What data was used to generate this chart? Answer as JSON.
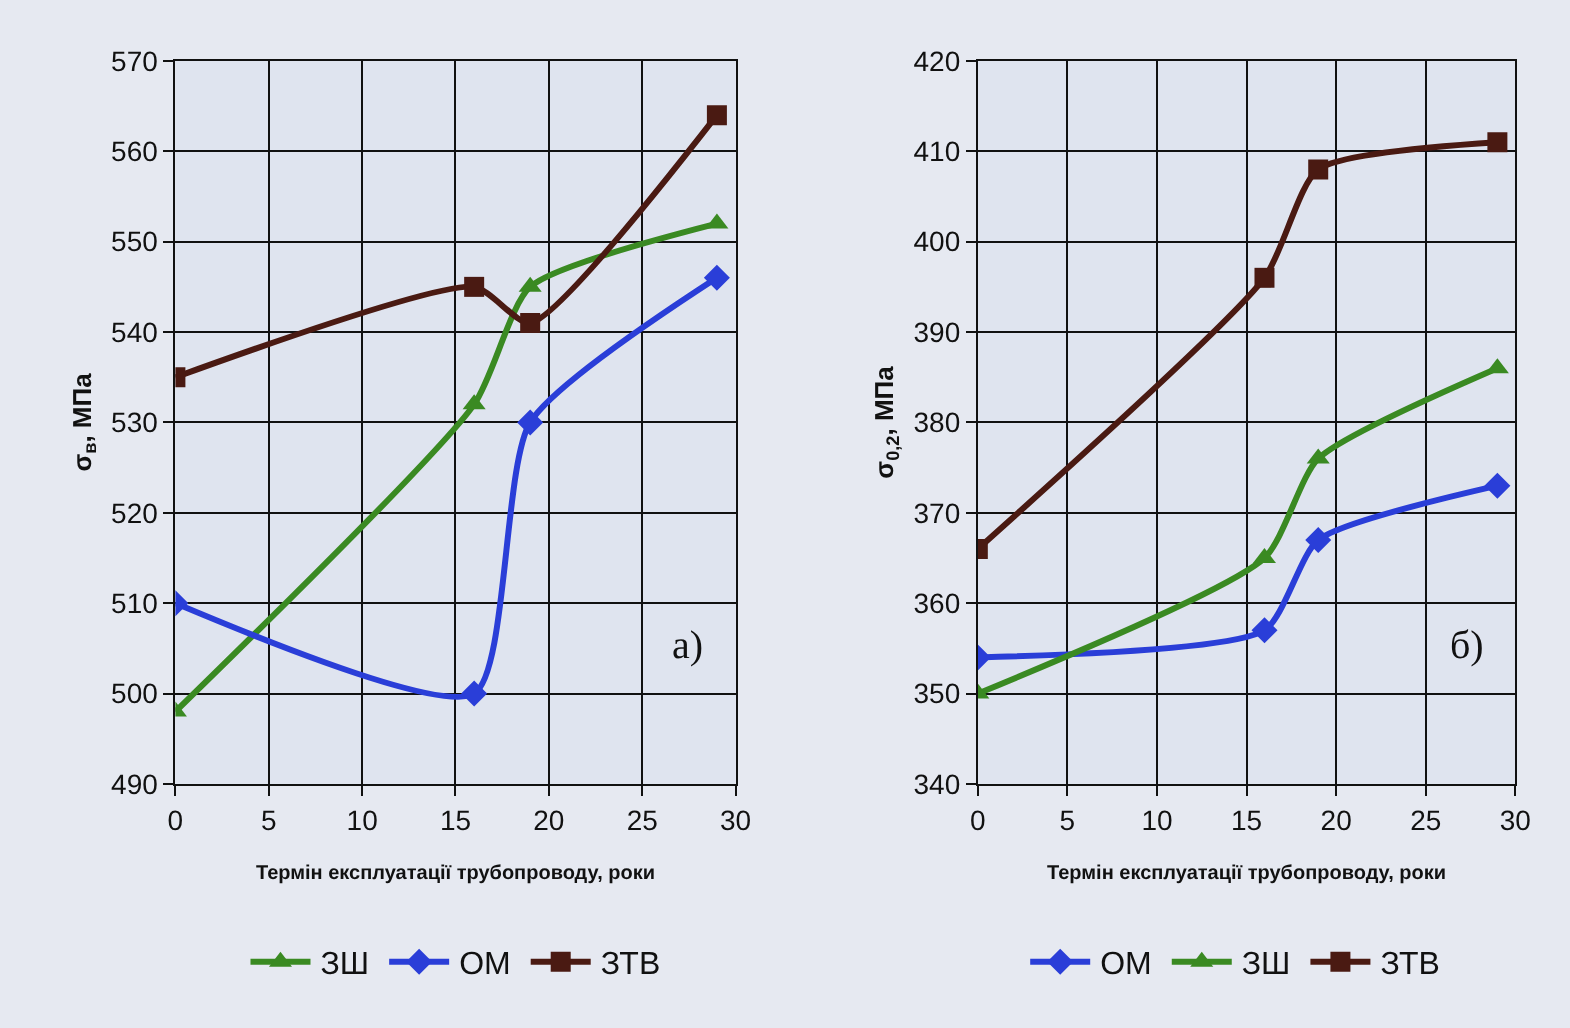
{
  "chart_data": [
    {
      "type": "line",
      "xlabel": "Термін експлуатації трубопроводу, роки",
      "ylabel": "σ$_{в}$, МПа",
      "annotations": [
        "a)"
      ],
      "xlim": [
        0,
        30
      ],
      "xticks": [
        0,
        5,
        10,
        15,
        20,
        25,
        30
      ],
      "ylim": [
        490,
        570
      ],
      "yticks": [
        490,
        500,
        510,
        520,
        530,
        540,
        550,
        560,
        570
      ],
      "grid": true,
      "legend": "bottom",
      "line_style": "solid",
      "x": [
        0,
        16,
        19,
        29
      ],
      "series": [
        {
          "name": "ЗШ",
          "color": "#3a8a22",
          "marker": "triangle",
          "values": [
            498,
            532,
            545,
            552
          ]
        },
        {
          "name": "ОМ",
          "color": "#2a3ed8",
          "marker": "diamond",
          "values": [
            510,
            500,
            530,
            546
          ]
        },
        {
          "name": "ЗТВ",
          "color": "#4a1a12",
          "marker": "square",
          "values": [
            535,
            545,
            541,
            564
          ]
        }
      ]
    },
    {
      "type": "line",
      "xlabel": "Термін експлуатації трубопроводу, роки",
      "ylabel": "σ$_{0,2}$, МПа",
      "annotations": [
        "б)"
      ],
      "xlim": [
        0,
        30
      ],
      "xticks": [
        0,
        5,
        10,
        15,
        20,
        25,
        30
      ],
      "ylim": [
        340,
        420
      ],
      "yticks": [
        340,
        350,
        360,
        370,
        380,
        390,
        400,
        410,
        420
      ],
      "grid": true,
      "legend": "bottom",
      "line_style": "solid",
      "x": [
        0,
        16,
        19,
        29
      ],
      "series": [
        {
          "name": "ОМ",
          "color": "#2a3ed8",
          "marker": "diamond",
          "values": [
            354,
            357,
            367,
            373
          ]
        },
        {
          "name": "ЗШ",
          "color": "#3a8a22",
          "marker": "triangle",
          "values": [
            350,
            365,
            376,
            386
          ]
        },
        {
          "name": "ЗТВ",
          "color": "#4a1a12",
          "marker": "square",
          "values": [
            366,
            396,
            408,
            411
          ]
        }
      ]
    }
  ]
}
